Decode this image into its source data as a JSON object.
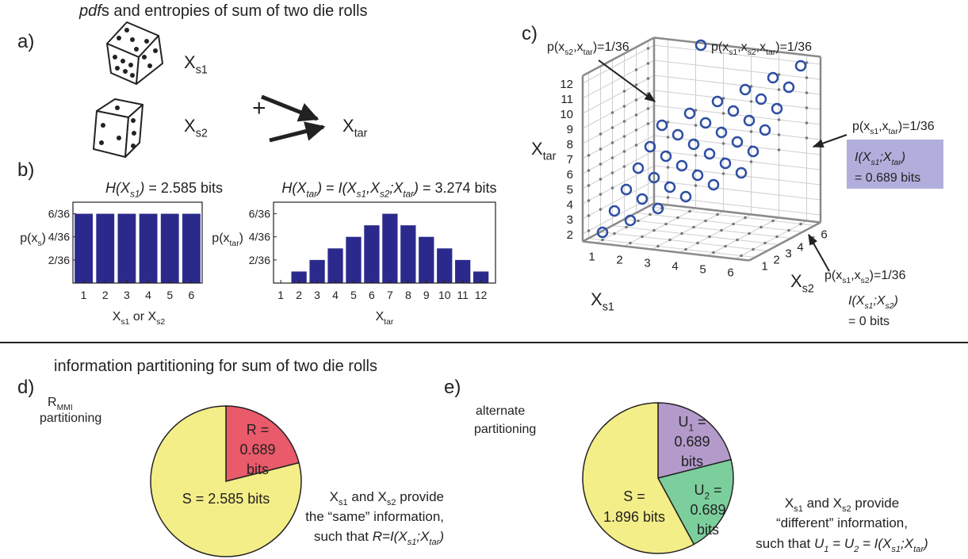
{
  "figure": {
    "panel_labels": [
      "a)",
      "b)",
      "c)",
      "d)",
      "e)"
    ],
    "section_titles": [
      [
        {
          "text": "pdf",
          "italic": true
        },
        "s and entropies of sum of two die rolls"
      ],
      "information partitioning for sum of two die rolls"
    ],
    "dice_labels": [
      [
        "X",
        {
          "text": "s1",
          "sub": true
        }
      ],
      [
        "X",
        {
          "text": "s2",
          "sub": true
        }
      ],
      "+",
      [
        "X",
        {
          "text": "tar",
          "sub": true
        }
      ]
    ]
  },
  "chart_data": [
    {
      "type": "bar",
      "title": [
        {
          "text": "H(X",
          "italic": true
        },
        {
          "text": "s1",
          "sub": true,
          "italic": true
        },
        {
          "text": ")",
          "italic": true
        },
        " = 2.585 bits"
      ],
      "ylabel": [
        "p(x",
        {
          "text": "s",
          "sub": true
        },
        ")"
      ],
      "xlabel": [
        "X",
        {
          "text": "s1",
          "sub": true
        },
        " or X",
        {
          "text": "s2",
          "sub": true
        }
      ],
      "x": [
        1,
        2,
        3,
        4,
        5,
        6
      ],
      "values": [
        0.166667,
        0.166667,
        0.166667,
        0.166667,
        0.166667,
        0.166667
      ],
      "color": "#2b2a8c",
      "xlim": [
        0.5,
        6.5
      ],
      "xticks": [
        1,
        2,
        3,
        4,
        5,
        6
      ],
      "ylim": [
        0,
        0.194444
      ],
      "yticks": [
        {
          "value": 0.055556,
          "label": "2/36"
        },
        {
          "value": 0.111111,
          "label": "4/36"
        },
        {
          "value": 0.166667,
          "label": "6/36"
        }
      ]
    },
    {
      "type": "bar",
      "title": [
        {
          "text": "H(X",
          "italic": true
        },
        {
          "text": "tar",
          "sub": true,
          "italic": true
        },
        {
          "text": ")",
          "italic": true
        },
        " = ",
        {
          "text": "I(X",
          "italic": true
        },
        {
          "text": "s1",
          "sub": true,
          "italic": true
        },
        {
          "text": ",X",
          "italic": true
        },
        {
          "text": "s2",
          "sub": true,
          "italic": true
        },
        {
          "text": ";X",
          "italic": true
        },
        {
          "text": "tar",
          "sub": true,
          "italic": true
        },
        {
          "text": ")",
          "italic": true
        },
        " = 3.274 bits"
      ],
      "ylabel": [
        "p(x",
        {
          "text": "tar",
          "sub": true
        },
        ")"
      ],
      "xlabel": [
        "X",
        {
          "text": "tar",
          "sub": true
        }
      ],
      "x": [
        2,
        3,
        4,
        5,
        6,
        7,
        8,
        9,
        10,
        11,
        12
      ],
      "values": [
        0.027778,
        0.055556,
        0.083333,
        0.111111,
        0.138889,
        0.166667,
        0.138889,
        0.111111,
        0.083333,
        0.055556,
        0.027778
      ],
      "color": "#2b2a8c",
      "xlim": [
        0.6,
        12.8
      ],
      "xticks": [
        1,
        2,
        3,
        4,
        5,
        6,
        7,
        8,
        9,
        10,
        11,
        12
      ],
      "ylim": [
        0,
        0.194444
      ],
      "yticks": [
        {
          "value": 0.055556,
          "label": "2/36"
        },
        {
          "value": 0.111111,
          "label": "4/36"
        },
        {
          "value": 0.166667,
          "label": "6/36"
        }
      ]
    },
    {
      "type": "scatter3d",
      "xlabel": [
        "X",
        {
          "text": "s1",
          "sub": true
        }
      ],
      "ylabel": [
        "X",
        {
          "text": "s2",
          "sub": true
        }
      ],
      "zlabel": [
        "X",
        {
          "text": "tar",
          "sub": true
        }
      ],
      "xlim": [
        0.5,
        6.5
      ],
      "xticks": [
        1,
        2,
        3,
        4,
        5,
        6
      ],
      "ylim": [
        0.5,
        6.5
      ],
      "yticks": [
        1,
        2,
        3,
        4,
        5,
        6
      ],
      "zlim": [
        1.5,
        12.5
      ],
      "zticks": [
        2,
        3,
        4,
        5,
        6,
        7,
        8,
        9,
        10,
        11,
        12
      ],
      "grid": true,
      "series": [
        {
          "name": [
            "p(x",
            {
              "text": "s1",
              "sub": true
            },
            ",x",
            {
              "text": "s2",
              "sub": true
            },
            ",x",
            {
              "text": "tar",
              "sub": true
            },
            ")=1/36"
          ],
          "color": "#2d4ea3",
          "x": [
            1,
            1,
            1,
            1,
            1,
            1,
            2,
            2,
            2,
            2,
            2,
            2,
            3,
            3,
            3,
            3,
            3,
            3,
            4,
            4,
            4,
            4,
            4,
            4,
            5,
            5,
            5,
            5,
            5,
            5,
            6,
            6,
            6,
            6,
            6,
            6
          ],
          "y": [
            1,
            2,
            3,
            4,
            5,
            6,
            1,
            2,
            3,
            4,
            5,
            6,
            1,
            2,
            3,
            4,
            5,
            6,
            1,
            2,
            3,
            4,
            5,
            6,
            1,
            2,
            3,
            4,
            5,
            6,
            1,
            2,
            3,
            4,
            5,
            6
          ],
          "values": [
            2,
            3,
            4,
            5,
            6,
            7,
            3,
            4,
            5,
            6,
            7,
            8,
            4,
            5,
            6,
            7,
            8,
            9,
            5,
            6,
            7,
            8,
            9,
            10,
            6,
            7,
            8,
            9,
            10,
            11,
            7,
            8,
            9,
            10,
            11,
            12
          ]
        }
      ],
      "annotations": [
        {
          "lines": [
            [
              "p(x",
              {
                "text": "s2",
                "sub": true
              },
              ",x",
              {
                "text": "tar",
                "sub": true
              },
              ")=1/36"
            ]
          ]
        },
        {
          "lines": [
            [
              "p(x",
              {
                "text": "s1",
                "sub": true
              },
              ",x",
              {
                "text": "tar",
                "sub": true
              },
              ")=1/36"
            ]
          ]
        },
        {
          "lines": [
            [
              {
                "text": "I(X",
                "italic": true
              },
              {
                "text": "s1",
                "sub": true,
                "italic": true
              },
              {
                "text": ";X",
                "italic": true
              },
              {
                "text": "tar",
                "sub": true,
                "italic": true
              },
              {
                "text": ")",
                "italic": true
              }
            ],
            "= 0.689 bits"
          ],
          "box_color": "#b2aedc"
        },
        {
          "lines": [
            [
              "p(x",
              {
                "text": "s1",
                "sub": true
              },
              ",x",
              {
                "text": "s2",
                "sub": true
              },
              ")=1/36"
            ],
            [
              {
                "text": "I(X",
                "italic": true
              },
              {
                "text": "s1",
                "sub": true,
                "italic": true
              },
              {
                "text": ";X",
                "italic": true
              },
              {
                "text": "s2",
                "sub": true,
                "italic": true
              },
              {
                "text": ")",
                "italic": true
              }
            ],
            "= 0 bits"
          ]
        }
      ]
    },
    {
      "type": "pie",
      "side_label": [
        [
          "R",
          {
            "text": "MMI",
            "sub": true
          }
        ],
        "partitioning"
      ],
      "values": [
        0.689,
        2.585
      ],
      "colors": [
        "#e95a6a",
        "#f4ee88"
      ],
      "value_labels": [
        [
          "R =",
          "0.689",
          "bits"
        ],
        [
          "S = 2.585 bits"
        ]
      ],
      "notes": [
        [
          "X",
          {
            "text": "s1",
            "sub": true
          },
          " and X",
          {
            "text": "s2",
            "sub": true
          },
          " provide"
        ],
        "the “same” information,",
        [
          "such that ",
          {
            "text": "R=I(X",
            "italic": true
          },
          {
            "text": "s1",
            "sub": true,
            "italic": true
          },
          {
            "text": ";X",
            "italic": true
          },
          {
            "text": "tar",
            "sub": true,
            "italic": true
          },
          {
            "text": ")",
            "italic": true
          }
        ]
      ]
    },
    {
      "type": "pie",
      "side_label": [
        "alternate",
        "partitioning"
      ],
      "values": [
        0.689,
        0.689,
        1.896
      ],
      "colors": [
        "#b39acb",
        "#7ccf9c",
        "#f4ee88"
      ],
      "value_labels": [
        [
          [
            "U",
            {
              "text": "1",
              "sub": true
            },
            " ="
          ],
          "0.689",
          "bits"
        ],
        [
          [
            "U",
            {
              "text": "2",
              "sub": true
            },
            " ="
          ],
          "0.689",
          "bits"
        ],
        [
          "S =",
          "1.896 bits"
        ]
      ],
      "notes": [
        [
          "X",
          {
            "text": "s1",
            "sub": true
          },
          " and X",
          {
            "text": "s2",
            "sub": true
          },
          " provide"
        ],
        "“different” information,",
        [
          "such that ",
          {
            "text": "U",
            "italic": true
          },
          {
            "text": "1",
            "sub": true,
            "italic": true
          },
          {
            "text": " = U",
            "italic": true
          },
          {
            "text": "2",
            "sub": true,
            "italic": true
          },
          {
            "text": " = I(X",
            "italic": true
          },
          {
            "text": "s1",
            "sub": true,
            "italic": true
          },
          {
            "text": ";X",
            "italic": true
          },
          {
            "text": "tar",
            "sub": true,
            "italic": true
          },
          {
            "text": ")",
            "italic": true
          }
        ]
      ]
    }
  ]
}
